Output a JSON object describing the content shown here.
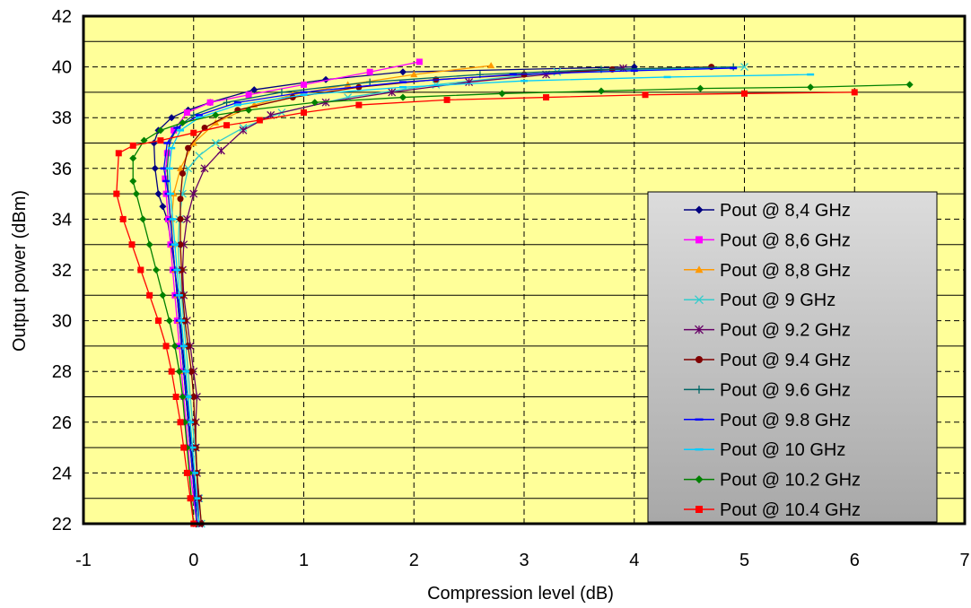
{
  "chart_data": {
    "type": "line",
    "title": "",
    "xlabel": "Compression level (dB)",
    "ylabel": "Output power (dBm)",
    "xlim": [
      -1,
      7
    ],
    "ylim": [
      22,
      42
    ],
    "x_ticks": [
      "-1",
      "0",
      "1",
      "2",
      "3",
      "4",
      "5",
      "6",
      "7"
    ],
    "y_ticks": [
      "22",
      "24",
      "26",
      "28",
      "30",
      "32",
      "34",
      "36",
      "38",
      "40",
      "42"
    ],
    "grid": "dashed, minor horizontal lines every 1 dB (solid)",
    "legend_position": "lower-right",
    "plot_background": "#ffff99",
    "series": [
      {
        "name": "Pout @ 8,4 GHz",
        "color": "#000080",
        "marker": "diamond",
        "x": [
          0.05,
          0.02,
          0.0,
          -0.02,
          -0.04,
          -0.06,
          -0.08,
          -0.1,
          -0.12,
          -0.14,
          -0.17,
          -0.2,
          -0.24,
          -0.28,
          -0.32,
          -0.35,
          -0.36,
          -0.32,
          -0.2,
          -0.05,
          0.15,
          0.55,
          1.2,
          1.9,
          4.0
        ],
        "y": [
          22.0,
          23.0,
          24.0,
          25.0,
          26.0,
          27.0,
          28.0,
          29.0,
          30.0,
          31.0,
          32.0,
          33.0,
          34.0,
          34.5,
          35.0,
          36.0,
          37.0,
          37.5,
          38.0,
          38.3,
          38.6,
          39.1,
          39.5,
          39.8,
          40.0
        ]
      },
      {
        "name": "Pout @ 8,6 GHz",
        "color": "#ff00ff",
        "marker": "square",
        "x": [
          0.03,
          0.0,
          -0.03,
          -0.05,
          -0.07,
          -0.09,
          -0.11,
          -0.13,
          -0.15,
          -0.17,
          -0.19,
          -0.21,
          -0.23,
          -0.25,
          -0.26,
          -0.24,
          -0.18,
          -0.06,
          0.15,
          0.5,
          1.0,
          1.6,
          2.05
        ],
        "y": [
          22.0,
          23.0,
          24.0,
          25.0,
          26.0,
          27.0,
          28.0,
          29.0,
          30.0,
          31.0,
          32.0,
          33.0,
          34.0,
          35.0,
          35.6,
          36.6,
          37.5,
          38.2,
          38.6,
          38.9,
          39.3,
          39.8,
          40.2
        ]
      },
      {
        "name": "Pout @ 8,8 GHz",
        "color": "#ff9900",
        "marker": "triangle",
        "x": [
          0.03,
          0.01,
          -0.01,
          -0.03,
          -0.05,
          -0.07,
          -0.09,
          -0.11,
          -0.13,
          -0.15,
          -0.17,
          -0.19,
          -0.2,
          -0.18,
          -0.12,
          0.0,
          0.2,
          0.55,
          0.9,
          1.4,
          2.0,
          2.7
        ],
        "y": [
          22.0,
          23.0,
          24.0,
          25.0,
          26.0,
          27.0,
          28.0,
          29.0,
          30.0,
          31.0,
          32.0,
          33.0,
          34.0,
          35.0,
          36.0,
          37.0,
          37.8,
          38.5,
          38.9,
          39.3,
          39.7,
          40.05
        ]
      },
      {
        "name": "Pout @ 9 GHz",
        "color": "#33cccc",
        "marker": "x",
        "x": [
          0.07,
          0.05,
          0.03,
          0.01,
          -0.01,
          -0.03,
          -0.05,
          -0.07,
          -0.09,
          -0.11,
          -0.13,
          -0.14,
          -0.13,
          -0.1,
          -0.05,
          0.05,
          0.2,
          0.45,
          0.8,
          1.4,
          2.2,
          3.3,
          5.0
        ],
        "y": [
          22.0,
          23.0,
          24.0,
          25.0,
          26.0,
          27.0,
          28.0,
          29.0,
          30.0,
          31.0,
          32.0,
          33.0,
          34.0,
          35.0,
          36.0,
          36.5,
          37.0,
          37.6,
          38.2,
          38.8,
          39.3,
          39.8,
          40.0
        ]
      },
      {
        "name": "Pout @ 9.2 GHz",
        "color": "#660066",
        "marker": "star",
        "x": [
          0.05,
          0.04,
          0.03,
          0.02,
          0.02,
          0.03,
          0.0,
          -0.03,
          -0.06,
          -0.09,
          -0.1,
          -0.09,
          -0.06,
          0.0,
          0.1,
          0.25,
          0.45,
          0.7,
          1.2,
          1.8,
          2.5,
          3.2,
          3.9
        ],
        "y": [
          22.0,
          23.0,
          24.0,
          25.0,
          26.0,
          27.0,
          28.0,
          29.0,
          30.0,
          31.0,
          32.0,
          33.0,
          34.0,
          35.0,
          36.0,
          36.7,
          37.5,
          38.1,
          38.6,
          39.0,
          39.4,
          39.7,
          39.95
        ]
      },
      {
        "name": "Pout @ 9.4 GHz",
        "color": "#800000",
        "marker": "circle",
        "x": [
          0.07,
          0.05,
          0.03,
          0.02,
          0.01,
          0.0,
          -0.02,
          -0.05,
          -0.08,
          -0.1,
          -0.11,
          -0.12,
          -0.12,
          -0.12,
          -0.1,
          -0.05,
          0.1,
          0.4,
          0.9,
          1.5,
          2.2,
          3.0,
          3.8,
          4.7
        ],
        "y": [
          22.0,
          23.0,
          24.0,
          25.0,
          26.0,
          27.0,
          28.0,
          29.0,
          30.0,
          31.0,
          32.0,
          33.0,
          34.0,
          34.8,
          35.8,
          36.8,
          37.6,
          38.3,
          38.8,
          39.2,
          39.5,
          39.7,
          39.9,
          40.0
        ]
      },
      {
        "name": "Pout @ 9.6 GHz",
        "color": "#006666",
        "marker": "plus",
        "x": [
          0.03,
          0.01,
          -0.01,
          -0.03,
          -0.05,
          -0.07,
          -0.09,
          -0.11,
          -0.13,
          -0.15,
          -0.17,
          -0.19,
          -0.21,
          -0.23,
          -0.24,
          -0.22,
          -0.15,
          0.0,
          0.3,
          0.8,
          1.6,
          2.6,
          3.7,
          4.9
        ],
        "y": [
          22.0,
          23.0,
          24.0,
          25.0,
          26.0,
          27.0,
          28.0,
          29.0,
          30.0,
          31.0,
          32.0,
          33.0,
          34.0,
          35.0,
          36.0,
          37.0,
          37.6,
          38.1,
          38.6,
          39.0,
          39.4,
          39.7,
          39.9,
          40.0
        ]
      },
      {
        "name": "Pout @ 9.8 GHz",
        "color": "#0000ff",
        "marker": "dash",
        "x": [
          0.03,
          0.01,
          -0.01,
          -0.03,
          -0.05,
          -0.07,
          -0.09,
          -0.11,
          -0.13,
          -0.15,
          -0.17,
          -0.19,
          -0.21,
          -0.23,
          -0.25,
          -0.27,
          -0.24,
          -0.15,
          0.05,
          0.4,
          1.0,
          1.9,
          2.9,
          4.0,
          4.9
        ],
        "y": [
          22.0,
          23.0,
          24.0,
          25.0,
          26.0,
          27.0,
          28.0,
          29.0,
          30.0,
          31.0,
          32.0,
          33.0,
          34.0,
          35.0,
          35.5,
          36.0,
          37.0,
          37.6,
          38.1,
          38.6,
          39.0,
          39.4,
          39.7,
          39.85,
          39.95
        ]
      },
      {
        "name": "Pout @ 10 GHz",
        "color": "#00ccff",
        "marker": "dash",
        "x": [
          0.05,
          0.03,
          0.01,
          -0.01,
          -0.03,
          -0.05,
          -0.07,
          -0.09,
          -0.11,
          -0.13,
          -0.15,
          -0.17,
          -0.19,
          -0.21,
          -0.22,
          -0.2,
          -0.12,
          0.05,
          0.4,
          1.0,
          1.9,
          3.0,
          4.3,
          5.6
        ],
        "y": [
          22.0,
          23.0,
          24.0,
          25.0,
          26.0,
          27.0,
          28.0,
          29.0,
          30.0,
          31.0,
          32.0,
          33.0,
          34.0,
          35.0,
          36.0,
          36.8,
          37.5,
          38.0,
          38.5,
          38.9,
          39.2,
          39.45,
          39.6,
          39.7
        ]
      },
      {
        "name": "Pout @ 10.2 GHz",
        "color": "#008000",
        "marker": "diamond",
        "x": [
          0.0,
          -0.02,
          -0.04,
          -0.06,
          -0.08,
          -0.1,
          -0.13,
          -0.17,
          -0.22,
          -0.28,
          -0.34,
          -0.4,
          -0.46,
          -0.52,
          -0.55,
          -0.55,
          -0.45,
          -0.3,
          -0.1,
          0.2,
          0.5,
          1.1,
          1.9,
          2.8,
          3.7,
          4.6,
          5.6,
          6.5
        ],
        "y": [
          22.0,
          23.0,
          24.0,
          25.0,
          26.0,
          27.0,
          28.0,
          29.0,
          30.0,
          31.0,
          32.0,
          33.0,
          34.0,
          35.0,
          35.5,
          36.4,
          37.1,
          37.5,
          37.8,
          38.1,
          38.3,
          38.6,
          38.8,
          38.95,
          39.05,
          39.15,
          39.2,
          39.3
        ]
      },
      {
        "name": "Pout @ 10.4 GHz",
        "color": "#ff0000",
        "marker": "square",
        "x": [
          0.0,
          -0.03,
          -0.06,
          -0.09,
          -0.12,
          -0.16,
          -0.2,
          -0.25,
          -0.32,
          -0.4,
          -0.48,
          -0.56,
          -0.64,
          -0.7,
          -0.68,
          -0.55,
          -0.3,
          0.0,
          0.3,
          0.6,
          1.0,
          1.5,
          2.3,
          3.2,
          4.1,
          5.0,
          6.0
        ],
        "y": [
          22.0,
          23.0,
          24.0,
          25.0,
          26.0,
          27.0,
          28.0,
          29.0,
          30.0,
          31.0,
          32.0,
          33.0,
          34.0,
          35.0,
          36.6,
          36.9,
          37.1,
          37.4,
          37.7,
          37.9,
          38.2,
          38.5,
          38.7,
          38.8,
          38.9,
          38.95,
          39.0
        ]
      }
    ]
  }
}
